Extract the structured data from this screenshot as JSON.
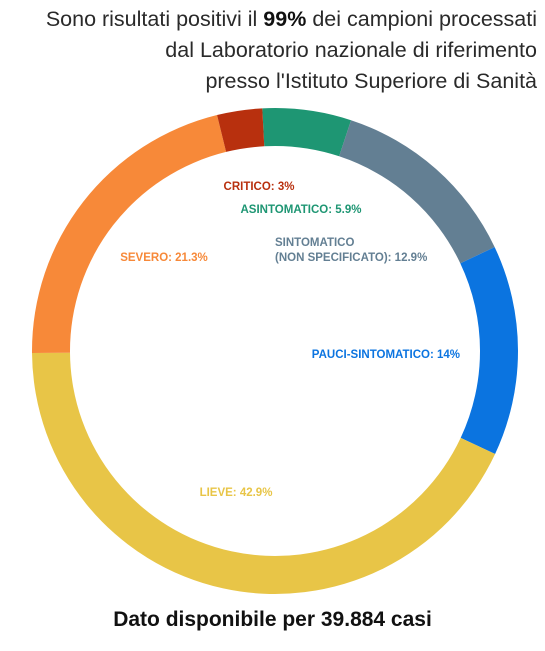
{
  "header": {
    "line1_prefix": "Sono risultati positivi il ",
    "line1_bold": "99%",
    "line1_suffix": " dei campioni processati",
    "line2": "dal Laboratorio nazionale di riferimento",
    "line3": "presso l'Istituto Superiore di Sanità"
  },
  "footer": {
    "text": "Dato disponibile per 39.884 casi"
  },
  "chart_data": {
    "type": "pie",
    "donut": true,
    "slices": [
      {
        "label": "ASINTOMATICO",
        "value": 5.9,
        "value_label": "5.9%",
        "color": "#1e9673"
      },
      {
        "label": "SINTOMATICO (NON SPECIFICATO)",
        "value": 12.9,
        "value_label": "12.9%",
        "color": "#637f93"
      },
      {
        "label": "PAUCI-SINTOMATICO",
        "value": 14,
        "value_label": "14%",
        "color": "#0b74e0"
      },
      {
        "label": "LIEVE",
        "value": 42.9,
        "value_label": "42.9%",
        "color": "#e8c547"
      },
      {
        "label": "SEVERO",
        "value": 21.3,
        "value_label": "21.3%",
        "color": "#f78939"
      },
      {
        "label": "CRITICO",
        "value": 3,
        "value_label": "3%",
        "color": "#b8300e"
      }
    ]
  }
}
